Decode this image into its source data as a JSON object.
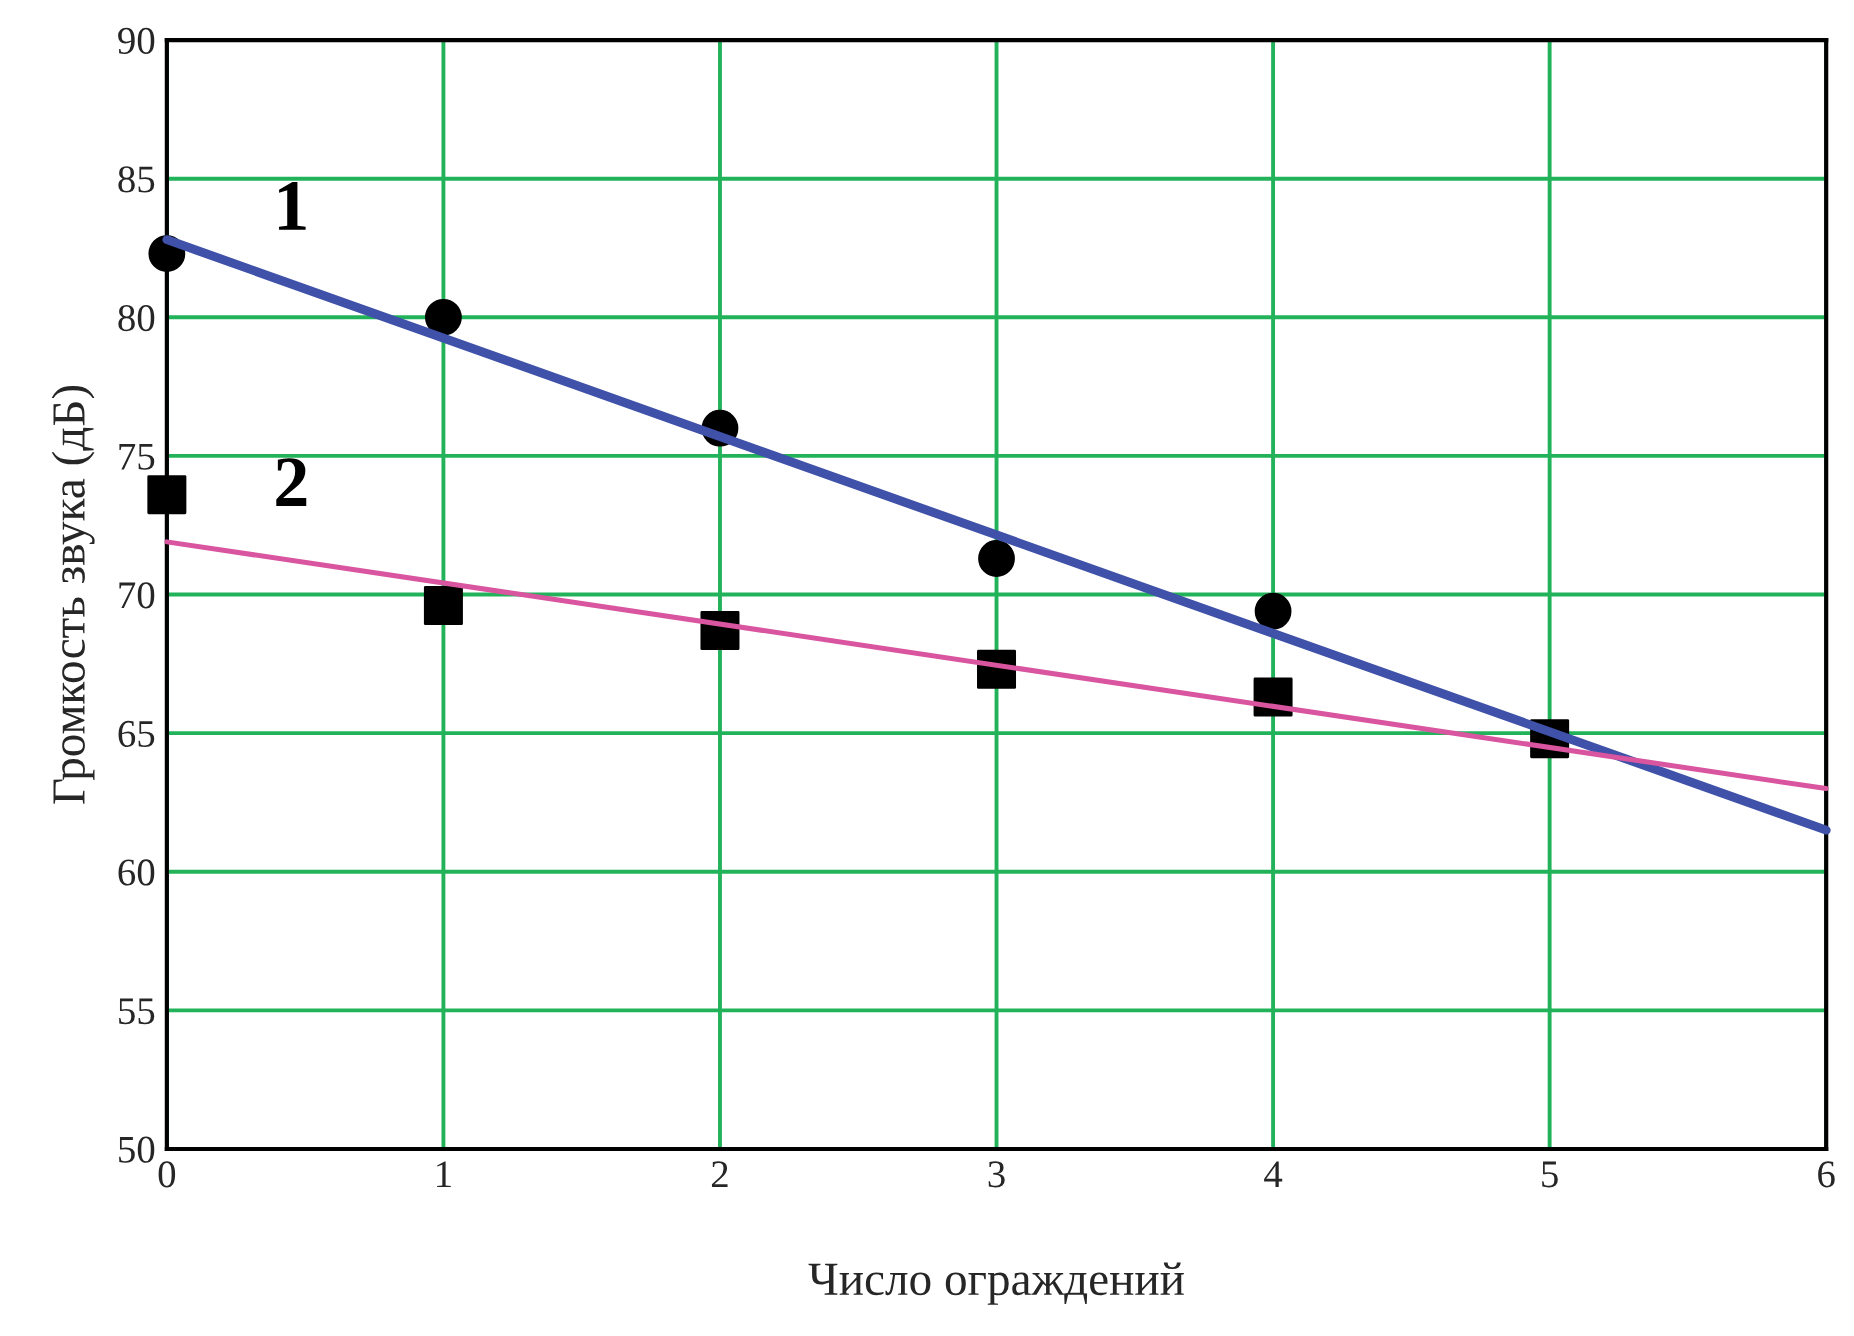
{
  "chart_data": {
    "type": "scatter",
    "xlabel": "Число ограждений",
    "ylabel": "Громкость звука (дБ)",
    "xlim": [
      0,
      6
    ],
    "ylim": [
      50,
      90
    ],
    "xticks": [
      0,
      1,
      2,
      3,
      4,
      5,
      6
    ],
    "yticks": [
      50,
      55,
      60,
      65,
      70,
      75,
      80,
      85,
      90
    ],
    "grid": true,
    "series": [
      {
        "marker": "circle",
        "color": "#000000",
        "x": [
          0,
          1,
          2,
          3,
          4
        ],
        "values": [
          82.3,
          80.0,
          76.0,
          71.3,
          69.4
        ]
      },
      {
        "marker": "square",
        "color": "#000000",
        "x": [
          0,
          1,
          2,
          3,
          4,
          5
        ],
        "values": [
          73.6,
          69.6,
          68.7,
          67.3,
          66.3,
          64.8
        ]
      },
      {
        "type": "line",
        "name": "1",
        "color": "#3f51a8",
        "x": [
          0,
          6
        ],
        "values": [
          82.8,
          61.5
        ]
      },
      {
        "type": "line",
        "name": "2",
        "color": "#d9559f",
        "x": [
          0,
          6
        ],
        "values": [
          71.9,
          63.0
        ]
      }
    ]
  }
}
